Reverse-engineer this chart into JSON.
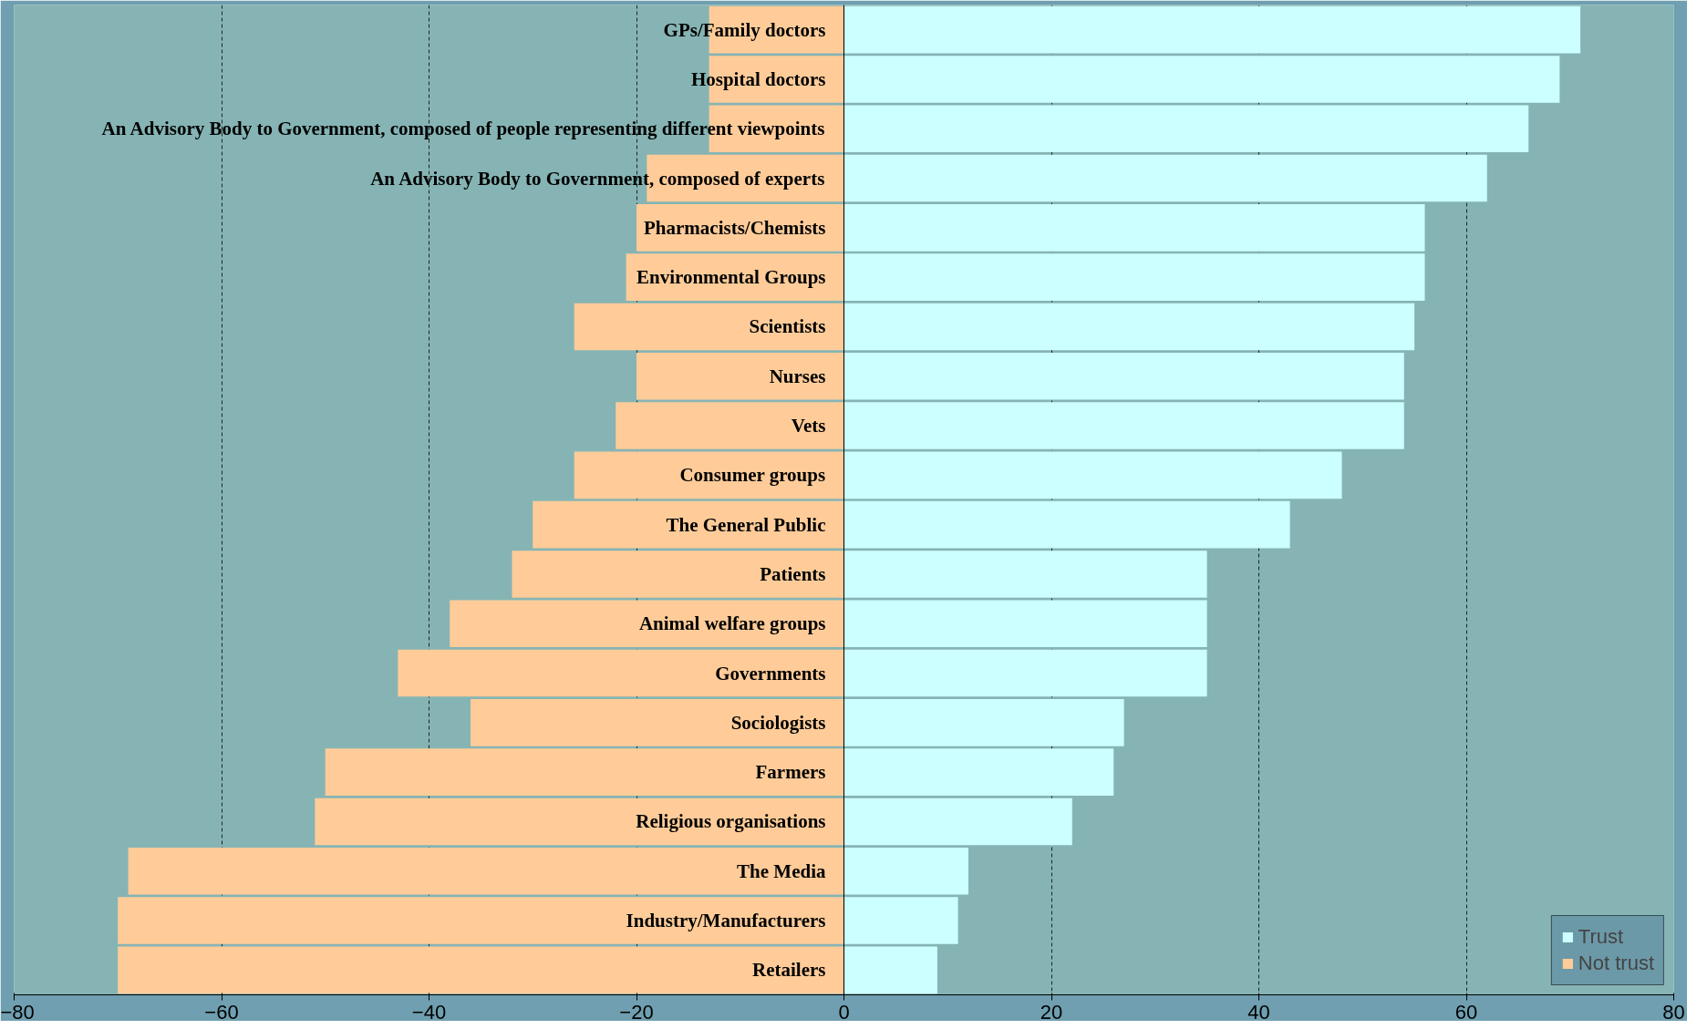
{
  "chart_data": {
    "type": "bar",
    "orientation": "horizontal",
    "stacked": true,
    "categories": [
      "GPs/Family doctors",
      "Hospital doctors",
      "An Advisory Body to Government, composed of people representing different viewpoints",
      "An Advisory Body to Government, composed of experts",
      "Pharmacists/Chemists",
      "Environmental Groups",
      "Scientists",
      "Nurses",
      "Vets",
      "Consumer groups",
      "The General Public",
      "Patients",
      "Animal welfare groups",
      "Governments",
      "Sociologists",
      "Farmers",
      "Religious organisations",
      "The Media",
      "Industry/Manufacturers",
      "Retailers"
    ],
    "series": [
      {
        "name": "Trust",
        "color": "#ccffff",
        "values": [
          71,
          69,
          66,
          62,
          56,
          56,
          55,
          54,
          54,
          48,
          43,
          35,
          35,
          35,
          27,
          26,
          22,
          12,
          11,
          9
        ]
      },
      {
        "name": "Not trust",
        "color": "#ffcc99",
        "values": [
          -13,
          -13,
          -13,
          -19,
          -20,
          -21,
          -26,
          -20,
          -22,
          -26,
          -30,
          -32,
          -38,
          -43,
          -36,
          -50,
          -51,
          -69,
          -70,
          -70
        ]
      }
    ],
    "xlim": [
      -80,
      80
    ],
    "xticks": [
      -80,
      -60,
      -40,
      -20,
      0,
      20,
      40,
      60,
      80
    ],
    "grid": "x",
    "legend": "bottom right"
  }
}
